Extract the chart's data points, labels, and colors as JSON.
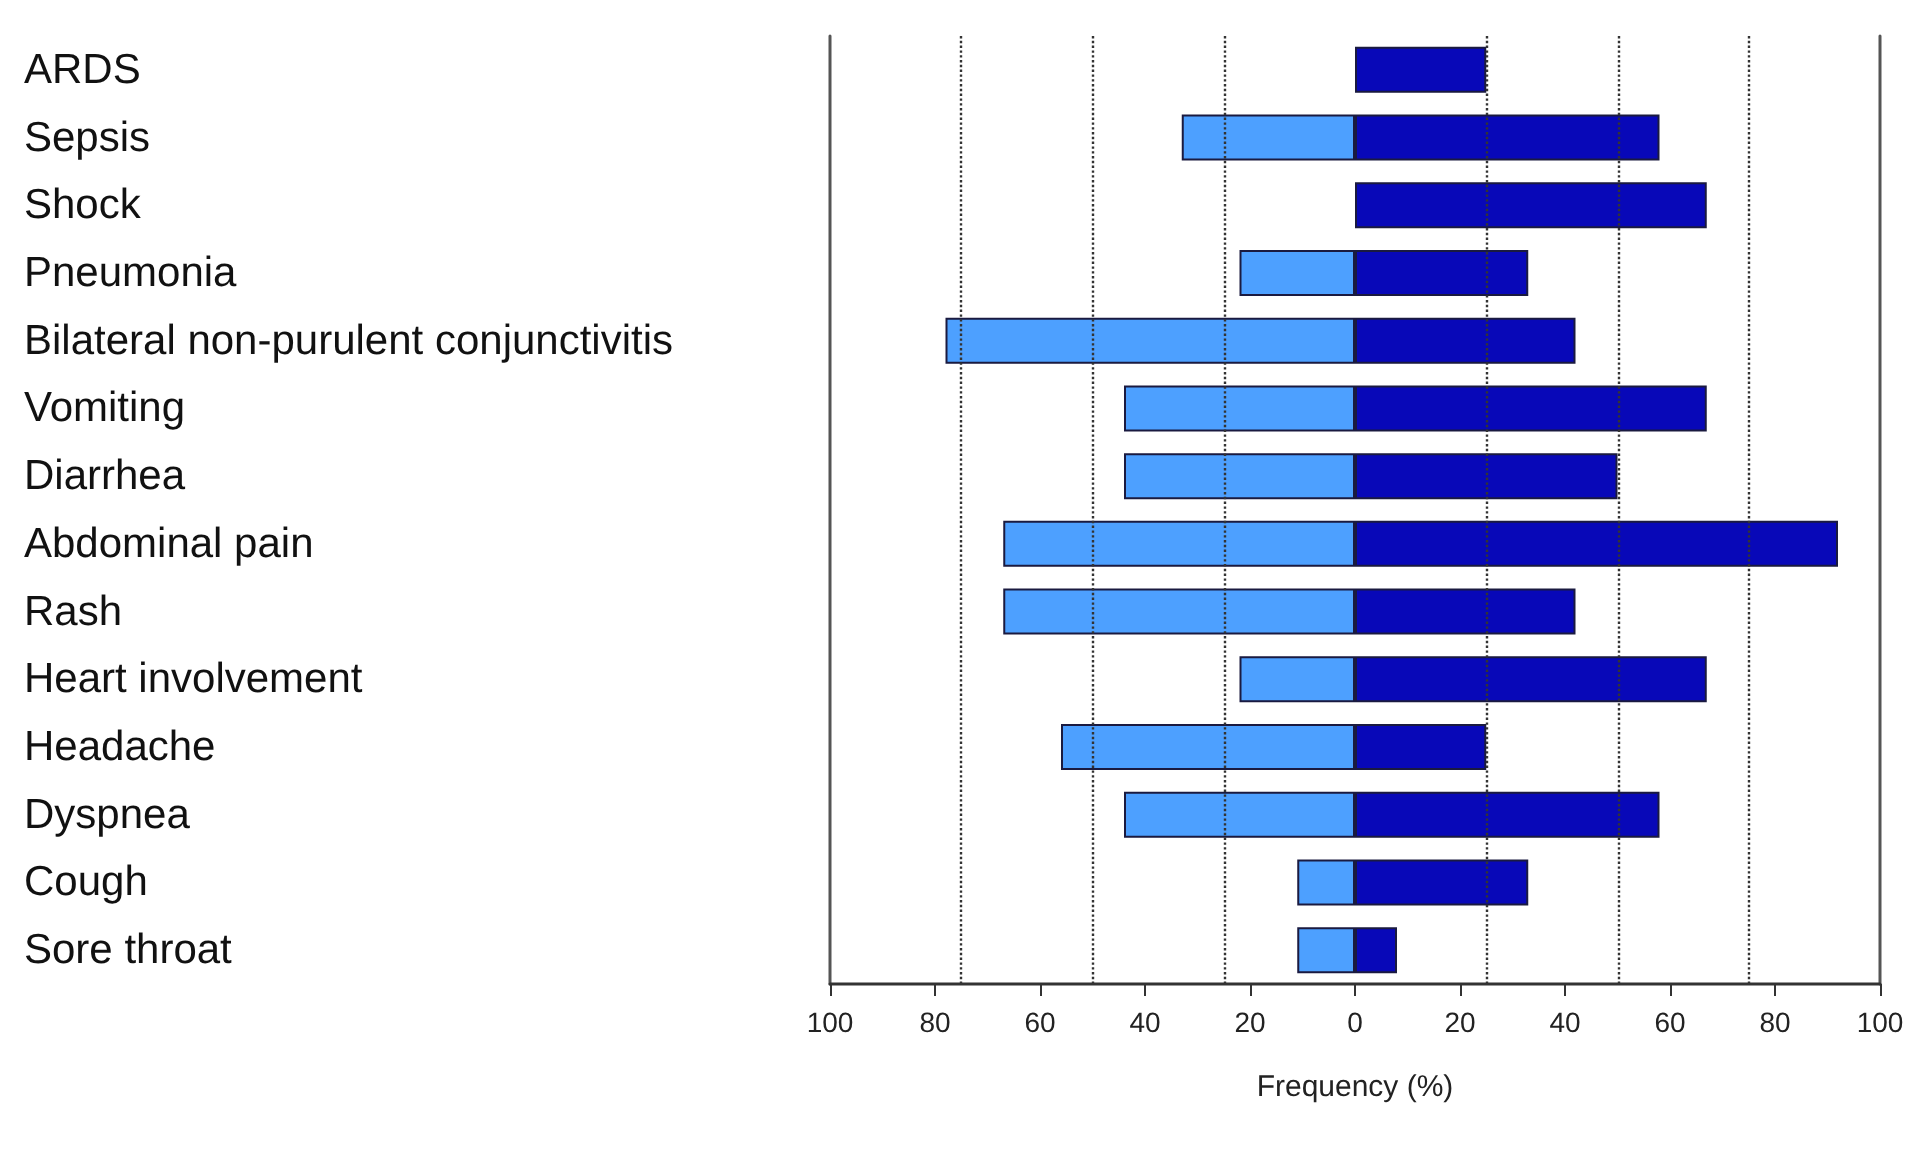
{
  "chart_data": {
    "type": "bar",
    "orientation": "horizontal",
    "xlabel": "Frequency (%)",
    "categories": [
      "ARDS",
      "Sepsis",
      "Shock",
      "Pneumonia",
      "Bilateral non-purulent conjunctivitis",
      "Vomiting",
      "Diarrhea",
      "Abdominal pain",
      "Rash",
      "Heart involvement",
      "Headache",
      "Dyspnea",
      "Cough",
      "Sore throat"
    ],
    "series": [
      {
        "color": "#4da0ff",
        "values": [
          null,
          -33,
          null,
          -22,
          -78,
          -44,
          -44,
          -67,
          -67,
          -22,
          -56,
          -44,
          -11,
          -11
        ]
      },
      {
        "color": "#0808b8",
        "values": [
          25,
          58,
          67,
          33,
          42,
          67,
          50,
          92,
          42,
          67,
          25,
          58,
          33,
          8
        ]
      }
    ],
    "xlim": [
      -100,
      100
    ],
    "xticks": [
      {
        "value": -100,
        "label": "100"
      },
      {
        "value": -80,
        "label": "80"
      },
      {
        "value": -60,
        "label": "60"
      },
      {
        "value": -40,
        "label": "40"
      },
      {
        "value": -20,
        "label": "20"
      },
      0,
      20,
      40,
      60,
      80,
      100
    ],
    "ref_lines": [
      {
        "axis": "x",
        "value": -75,
        "line_style": "dotted",
        "color": "#333333"
      },
      {
        "axis": "x",
        "value": -50,
        "line_style": "dotted",
        "color": "#333333"
      },
      {
        "axis": "x",
        "value": -25,
        "line_style": "dotted",
        "color": "#333333"
      },
      {
        "axis": "x",
        "value": 25,
        "line_style": "dotted",
        "color": "#333333"
      },
      {
        "axis": "x",
        "value": 50,
        "line_style": "dotted",
        "color": "#333333"
      },
      {
        "axis": "x",
        "value": 75,
        "line_style": "dotted",
        "color": "#333333"
      }
    ],
    "stacked": true,
    "grid": false
  }
}
